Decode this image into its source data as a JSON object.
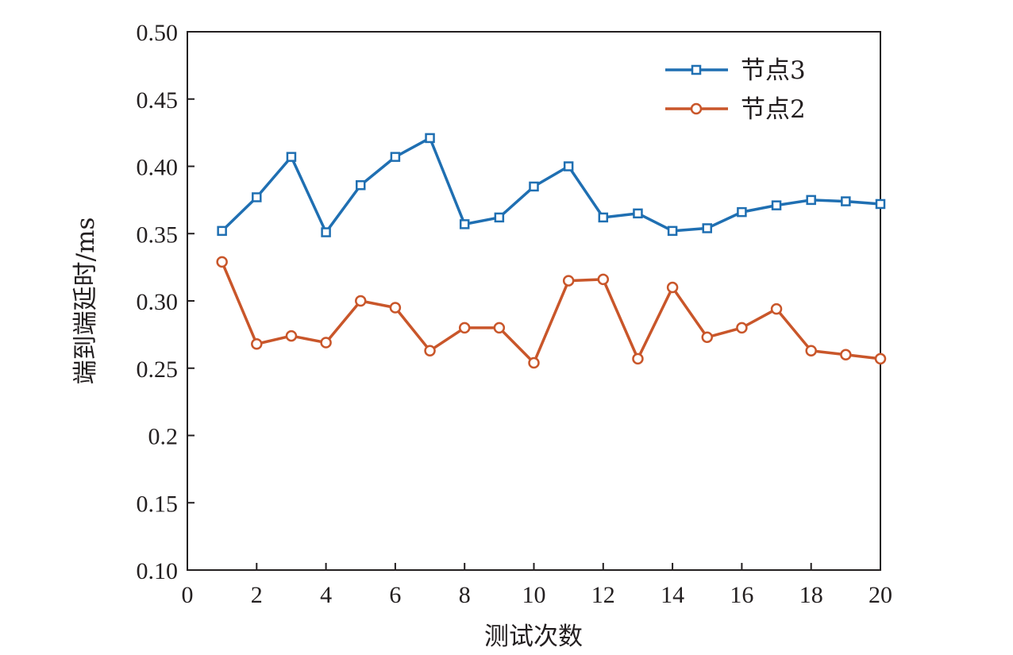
{
  "chart_data": {
    "type": "line",
    "xlabel": "测试次数",
    "ylabel": "端到端延时/ms",
    "xlim": [
      0,
      20
    ],
    "ylim": [
      0.1,
      0.5
    ],
    "xticks": [
      0,
      2,
      4,
      6,
      8,
      10,
      12,
      14,
      16,
      18,
      20
    ],
    "xtick_labels": [
      "0",
      "2",
      "4",
      "6",
      "8",
      "10",
      "12",
      "14",
      "16",
      "18",
      "20"
    ],
    "yticks": [
      0.1,
      0.15,
      0.2,
      0.25,
      0.3,
      0.35,
      0.4,
      0.45,
      0.5
    ],
    "ytick_labels": [
      "0.10",
      "0.15",
      "0.2",
      "0.25",
      "0.30",
      "0.35",
      "0.40",
      "0.45",
      "0.50"
    ],
    "grid": false,
    "legend_position": "top-right",
    "x": [
      1,
      2,
      3,
      4,
      5,
      6,
      7,
      8,
      9,
      10,
      11,
      12,
      13,
      14,
      15,
      16,
      17,
      18,
      19,
      20
    ],
    "series": [
      {
        "name": "节点3",
        "color": "#1f6fb2",
        "marker": "square",
        "values": [
          0.352,
          0.377,
          0.407,
          0.351,
          0.386,
          0.407,
          0.421,
          0.357,
          0.362,
          0.385,
          0.4,
          0.362,
          0.365,
          0.352,
          0.354,
          0.366,
          0.371,
          0.375,
          0.374,
          0.372
        ]
      },
      {
        "name": "节点2",
        "color": "#c9562a",
        "marker": "circle",
        "values": [
          0.329,
          0.268,
          0.274,
          0.269,
          0.3,
          0.295,
          0.263,
          0.28,
          0.28,
          0.254,
          0.315,
          0.316,
          0.257,
          0.31,
          0.273,
          0.28,
          0.294,
          0.263,
          0.26,
          0.257
        ]
      }
    ]
  }
}
